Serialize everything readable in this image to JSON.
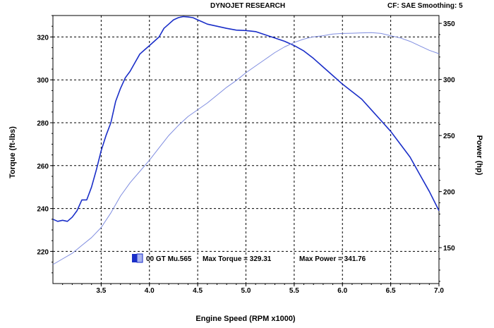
{
  "header": {
    "center": "DYNOJET RESEARCH",
    "right": "CF: SAE  Smoothing: 5"
  },
  "colors": {
    "torque": "#1a2ec8",
    "power": "#7f8de0",
    "grid": "#000000"
  },
  "chart_data": {
    "type": "line",
    "xlabel": "Engine Speed (RPM x1000)",
    "ylabel_left": "Torque (ft-lbs)",
    "ylabel_right": "Power (hp)",
    "xlim": [
      3.0,
      7.0
    ],
    "ylim_left": [
      205,
      330
    ],
    "ylim_right": [
      118,
      357
    ],
    "x_ticks": [
      "3.5",
      "4.0",
      "4.5",
      "5.0",
      "5.5",
      "6.0",
      "6.5",
      "7.0"
    ],
    "y_ticks_left": [
      "220",
      "240",
      "260",
      "280",
      "300",
      "320"
    ],
    "y_ticks_right": [
      "150",
      "200",
      "250",
      "300",
      "350"
    ],
    "grid": true,
    "legend": {
      "run": "00 GT Mu.565",
      "max_torque": "Max Torque = 329.31",
      "max_power": "Max Power = 341.76"
    },
    "series": [
      {
        "axis": "left",
        "x": [
          3.0,
          3.05,
          3.1,
          3.15,
          3.2,
          3.25,
          3.3,
          3.35,
          3.4,
          3.45,
          3.5,
          3.55,
          3.6,
          3.65,
          3.7,
          3.75,
          3.8,
          3.85,
          3.9,
          3.95,
          4.0,
          4.05,
          4.1,
          4.15,
          4.2,
          4.25,
          4.3,
          4.35,
          4.4,
          4.45,
          4.5,
          4.55,
          4.6,
          4.7,
          4.8,
          4.9,
          5.0,
          5.1,
          5.2,
          5.3,
          5.4,
          5.5,
          5.6,
          5.7,
          5.8,
          5.9,
          6.0,
          6.1,
          6.2,
          6.3,
          6.4,
          6.5,
          6.6,
          6.7,
          6.8,
          6.9,
          7.0
        ],
        "values": [
          235,
          234,
          234.5,
          234,
          236,
          239,
          244,
          244,
          250,
          258,
          267,
          274,
          280,
          290,
          296,
          301,
          304,
          308,
          312,
          314,
          316,
          318,
          320,
          324,
          326,
          328,
          329,
          329.5,
          329.3,
          329,
          328,
          327,
          326,
          325,
          324,
          323.2,
          323,
          322.5,
          321,
          319.5,
          318,
          316,
          313.5,
          310,
          306,
          302,
          298,
          294.5,
          291,
          286,
          281,
          276,
          270,
          264,
          256,
          248,
          239
        ]
      },
      {
        "axis": "right",
        "x": [
          3.0,
          3.1,
          3.2,
          3.3,
          3.4,
          3.5,
          3.6,
          3.7,
          3.8,
          3.9,
          4.0,
          4.1,
          4.2,
          4.3,
          4.4,
          4.5,
          4.6,
          4.7,
          4.8,
          4.9,
          5.0,
          5.1,
          5.2,
          5.3,
          5.4,
          5.5,
          5.6,
          5.7,
          5.8,
          5.9,
          6.0,
          6.1,
          6.2,
          6.3,
          6.4,
          6.5,
          6.6,
          6.7,
          6.8,
          6.9,
          7.0
        ],
        "values": [
          135,
          140,
          145,
          152,
          159,
          168,
          181,
          196,
          208,
          218,
          228,
          239,
          250,
          259,
          267,
          273,
          279,
          286,
          293,
          299,
          306,
          312,
          318,
          324,
          329,
          333,
          336,
          338,
          339,
          340.5,
          341,
          341.2,
          341.5,
          341.8,
          341,
          339,
          337,
          334,
          330,
          326,
          323
        ]
      }
    ]
  }
}
